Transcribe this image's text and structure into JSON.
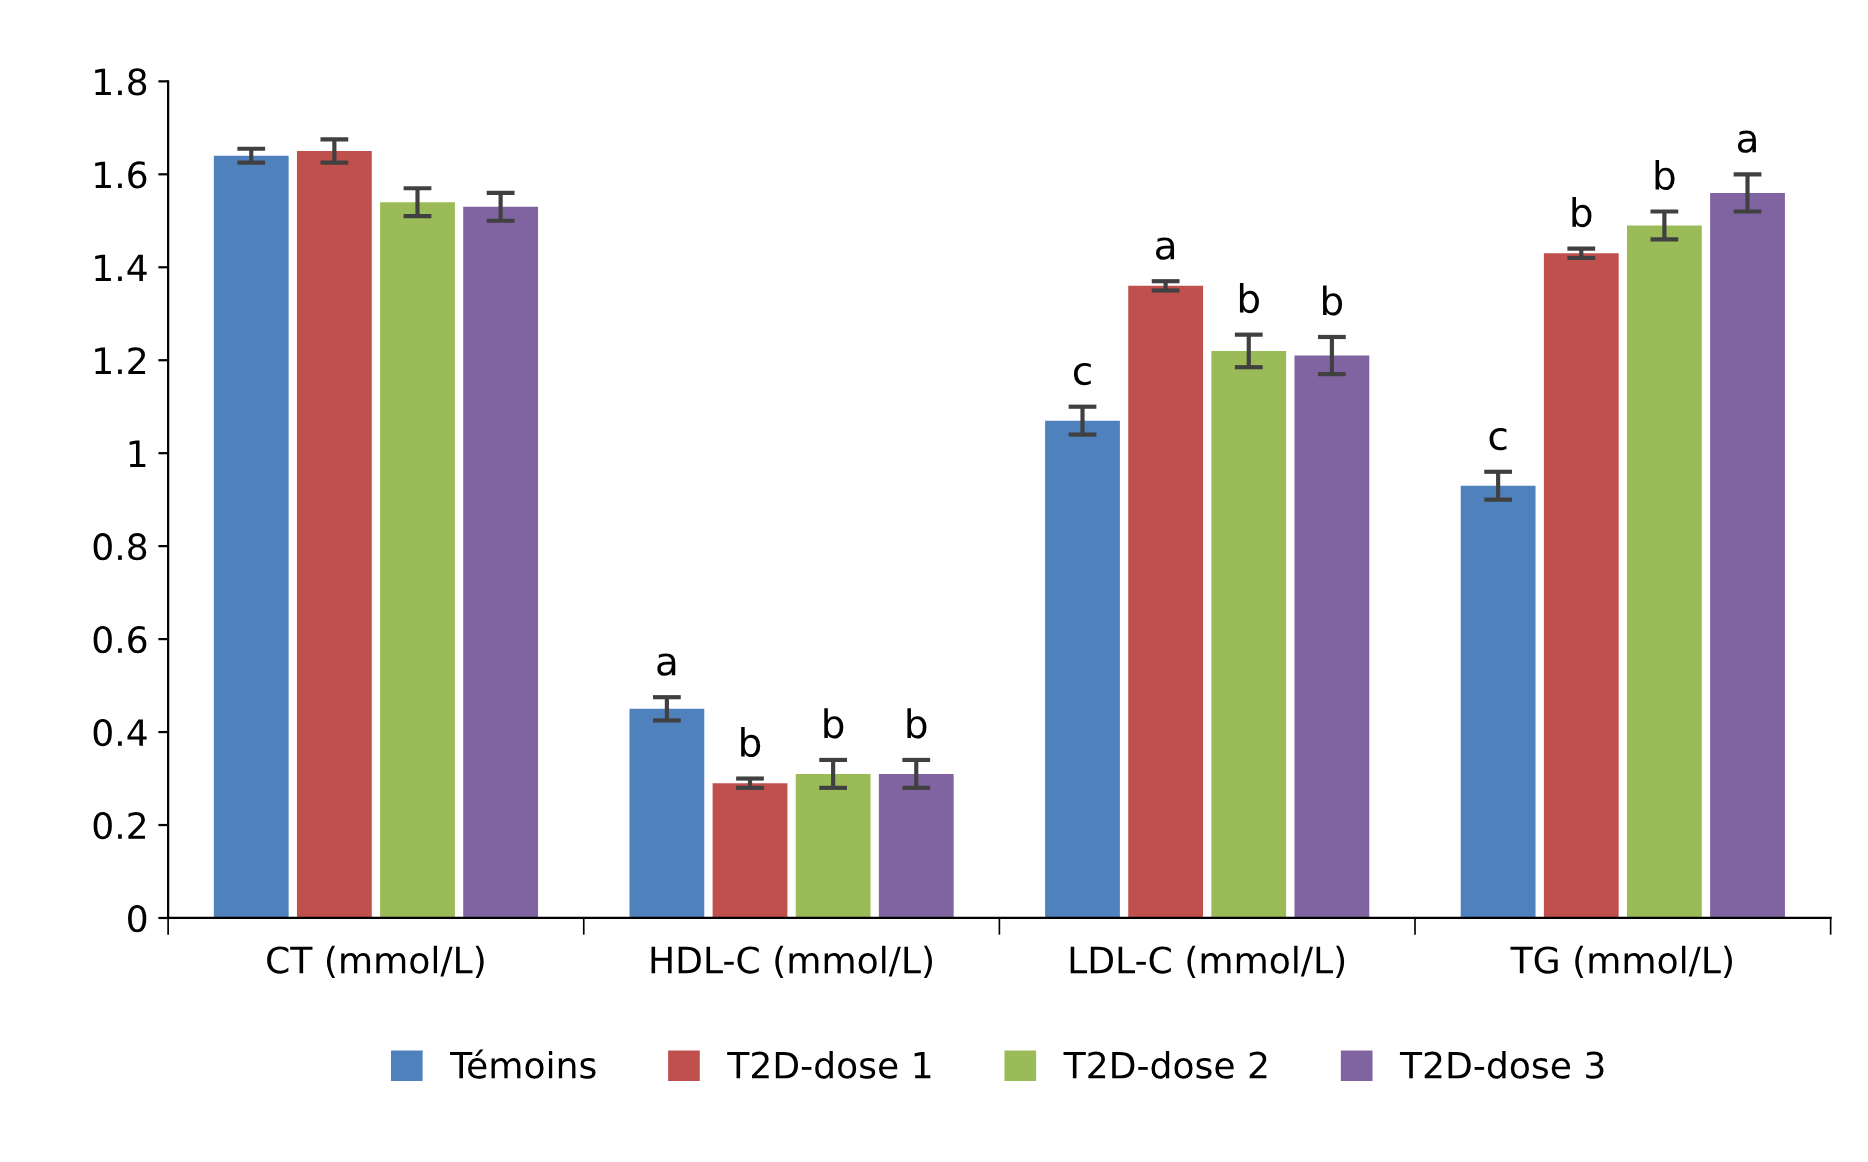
{
  "chart_data": {
    "type": "bar",
    "categories": [
      "CT (mmol/L)",
      "HDL-C (mmol/L)",
      "LDL-C (mmol/L)",
      "TG (mmol/L)"
    ],
    "series": [
      {
        "name": "Témoins",
        "color": "#4f81bd",
        "values": [
          1.64,
          0.45,
          1.07,
          0.93
        ],
        "errors": [
          0.015,
          0.025,
          0.03,
          0.03
        ],
        "value_labels": [
          null,
          "a",
          "c",
          "c"
        ]
      },
      {
        "name": "T2D-dose 1",
        "color": "#c0504d",
        "values": [
          1.65,
          0.29,
          1.36,
          1.43
        ],
        "errors": [
          0.025,
          0.01,
          0.01,
          0.01
        ],
        "value_labels": [
          null,
          "b",
          "a",
          "b"
        ]
      },
      {
        "name": "T2D-dose 2",
        "color": "#9bbb59",
        "values": [
          1.54,
          0.31,
          1.22,
          1.49
        ],
        "errors": [
          0.03,
          0.03,
          0.035,
          0.03
        ],
        "value_labels": [
          null,
          "b",
          "b",
          "b"
        ]
      },
      {
        "name": "T2D-dose 3",
        "color": "#8064a2",
        "values": [
          1.53,
          0.31,
          1.21,
          1.56
        ],
        "errors": [
          0.03,
          0.03,
          0.04,
          0.04
        ],
        "value_labels": [
          null,
          "b",
          "b",
          "a"
        ]
      }
    ],
    "ylim": [
      0,
      1.8
    ],
    "yticks": [
      0,
      0.2,
      0.4,
      0.6,
      0.8,
      1,
      1.2,
      1.4,
      1.6,
      1.8
    ],
    "grid": false,
    "legend": "bottom"
  }
}
